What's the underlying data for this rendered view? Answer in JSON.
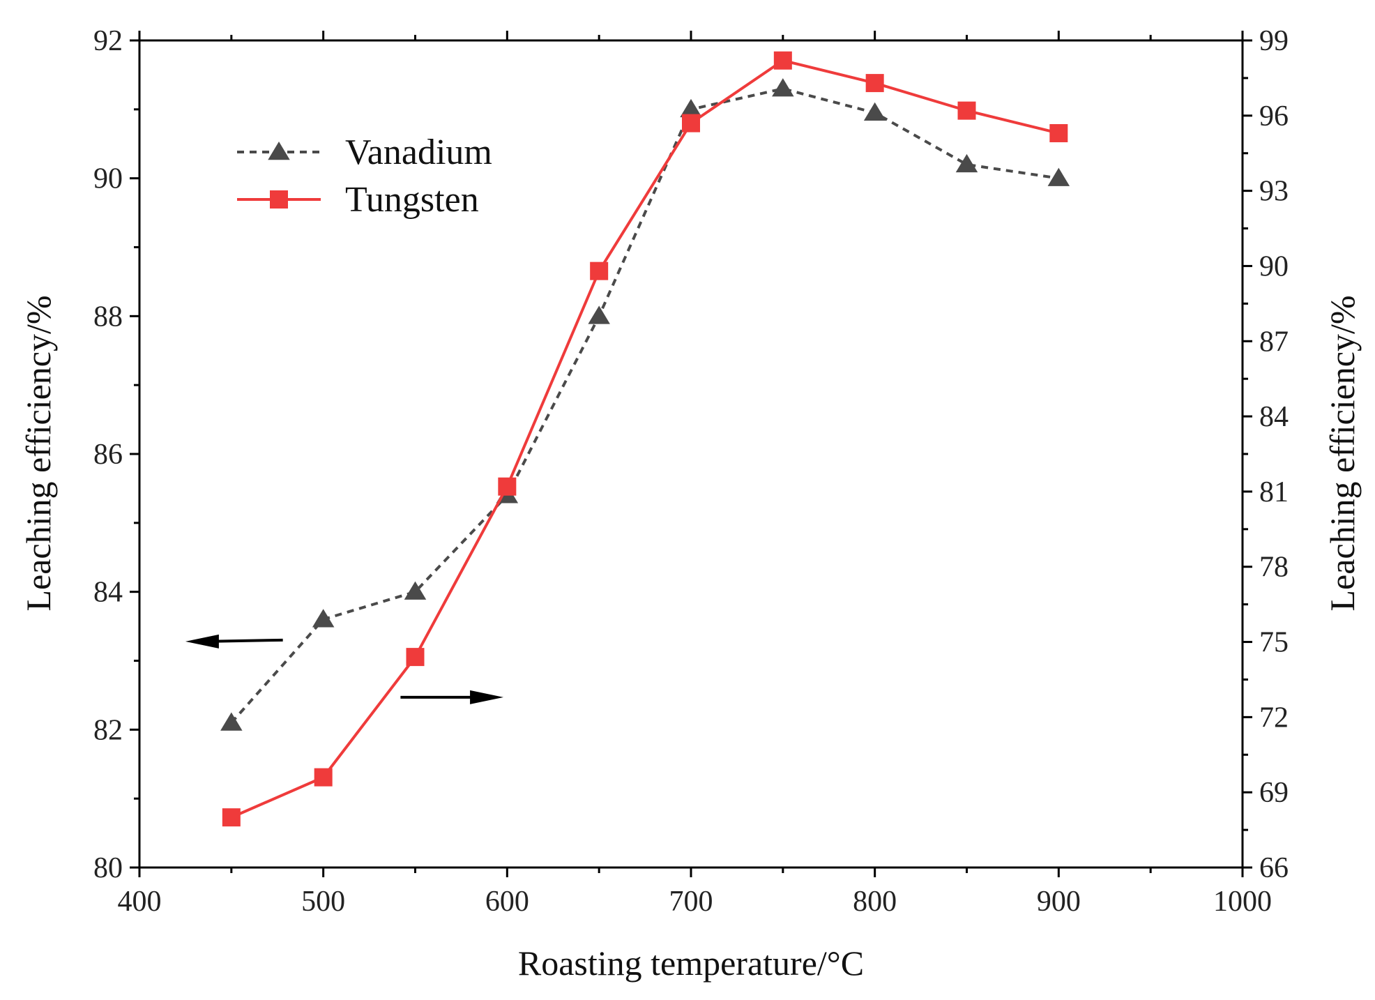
{
  "chart_data": {
    "type": "line",
    "x": [
      450,
      500,
      550,
      600,
      650,
      700,
      750,
      800,
      850,
      900
    ],
    "xlabel": "Roasting temperature/°C",
    "xlim": [
      400,
      1000
    ],
    "xticks": [
      400,
      500,
      600,
      700,
      800,
      900,
      1000
    ],
    "ylabel_left": "Leaching efficiency/%",
    "ylim_left": [
      80,
      92
    ],
    "yticks_left": [
      80,
      82,
      84,
      86,
      88,
      90,
      92
    ],
    "ylabel_right": "Leaching efficiency/%",
    "ylim_right": [
      66,
      99
    ],
    "yticks_right": [
      66,
      69,
      72,
      75,
      78,
      81,
      84,
      87,
      90,
      93,
      96,
      99
    ],
    "series": [
      {
        "name": "Vanadium",
        "axis": "left",
        "color": "#4a4a4a",
        "line_style": "dashed",
        "marker": "triangle",
        "values": [
          82.1,
          83.6,
          84.0,
          85.4,
          88.0,
          91.0,
          91.3,
          90.95,
          90.2,
          90.0
        ]
      },
      {
        "name": "Tungsten",
        "axis": "right",
        "color": "#ef3b3b",
        "line_style": "solid",
        "marker": "square",
        "values": [
          68.0,
          69.6,
          74.4,
          81.2,
          89.8,
          95.7,
          98.2,
          97.3,
          96.2,
          95.3
        ]
      }
    ],
    "legend_position": "top-left",
    "annotations": [
      {
        "type": "arrow",
        "direction": "left",
        "meaning": "Vanadium uses left axis"
      },
      {
        "type": "arrow",
        "direction": "right",
        "meaning": "Tungsten uses right axis"
      }
    ]
  }
}
